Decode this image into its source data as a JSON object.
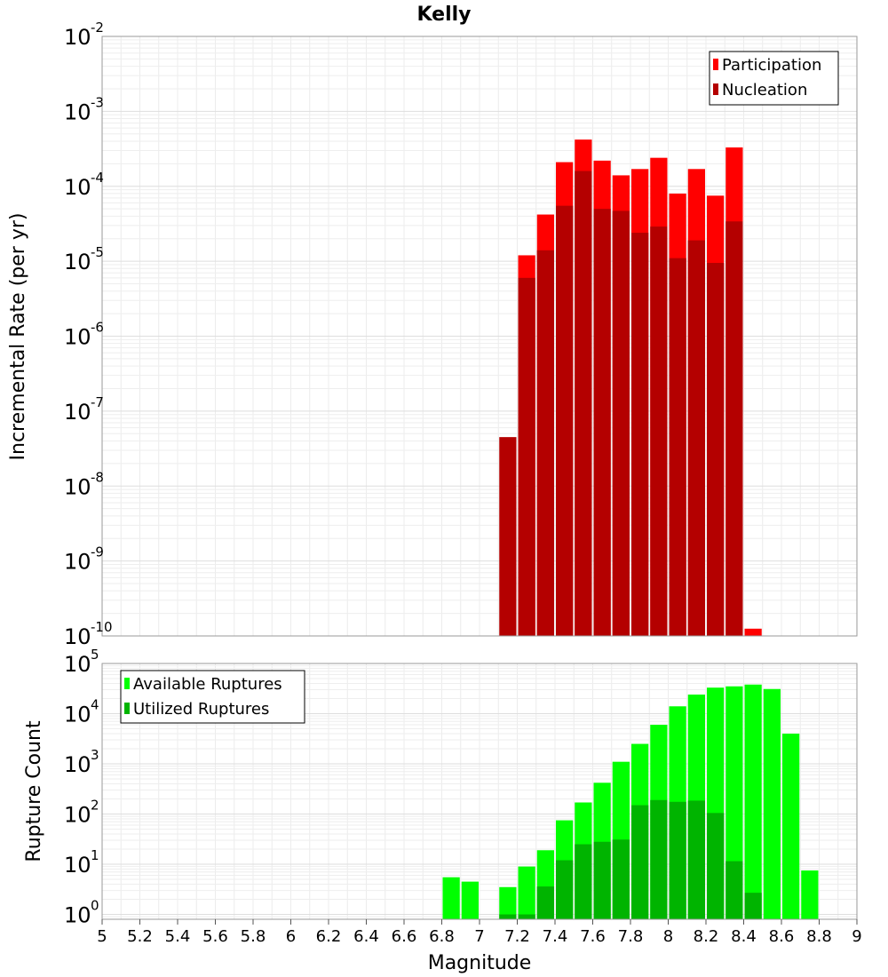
{
  "chart_data": [
    {
      "type": "bar",
      "panel": "top",
      "title": "Kelly",
      "xlabel": "",
      "ylabel": "Incremental Rate (per yr)",
      "yscale": "log",
      "ylim": [
        1e-10,
        0.01
      ],
      "xlim": [
        5,
        9
      ],
      "y_tick_exponents": [
        -10,
        -9,
        -8,
        -7,
        -6,
        -5,
        -4,
        -3,
        -2
      ],
      "legend_position": "top-right",
      "bin_width": 0.1,
      "x": [
        7.15,
        7.25,
        7.35,
        7.45,
        7.55,
        7.65,
        7.75,
        7.85,
        7.95,
        8.05,
        8.15,
        8.25,
        8.35,
        8.45
      ],
      "series": [
        {
          "name": "Participation",
          "color": "#ff0000",
          "values": [
            null,
            1.2e-05,
            4.2e-05,
            0.00021,
            0.00042,
            0.00022,
            0.00014,
            0.00017,
            0.00024,
            8e-05,
            0.00017,
            7.5e-05,
            0.00033,
            1.25e-10
          ]
        },
        {
          "name": "Nucleation",
          "color": "#b40000",
          "values": [
            4.5e-08,
            6e-06,
            1.4e-05,
            5.5e-05,
            0.00016,
            5e-05,
            4.7e-05,
            2.4e-05,
            2.9e-05,
            1.1e-05,
            1.9e-05,
            9.5e-06,
            3.4e-05,
            null
          ]
        }
      ]
    },
    {
      "type": "bar",
      "panel": "bottom",
      "title": "",
      "xlabel": "Magnitude",
      "ylabel": "Rupture Count",
      "yscale": "log",
      "ylim": [
        0.8,
        100000.0
      ],
      "xlim": [
        5,
        9
      ],
      "y_tick_exponents": [
        0,
        1,
        2,
        3,
        4,
        5
      ],
      "x_ticks": [
        "5",
        "5.2",
        "5.4",
        "5.6",
        "5.8",
        "6",
        "6.2",
        "6.4",
        "6.6",
        "6.8",
        "7",
        "7.2",
        "7.4",
        "7.6",
        "7.8",
        "8",
        "8.2",
        "8.4",
        "8.6",
        "8.8",
        "9"
      ],
      "legend_position": "top-left",
      "bin_width": 0.1,
      "x": [
        6.85,
        6.95,
        7.15,
        7.25,
        7.35,
        7.45,
        7.55,
        7.65,
        7.75,
        7.85,
        7.95,
        8.05,
        8.15,
        8.25,
        8.35,
        8.45,
        8.55,
        8.65,
        8.75
      ],
      "series": [
        {
          "name": "Available Ruptures",
          "color": "#00ff00",
          "values": [
            5.5,
            4.5,
            3.5,
            9,
            19,
            75,
            170,
            420,
            1100,
            2500,
            6000,
            14000,
            24000,
            33000,
            35000,
            38000,
            31000,
            4000,
            7.5
          ]
        },
        {
          "name": "Utilized Ruptures",
          "color": "#00b400",
          "values": [
            null,
            null,
            1,
            1,
            3.6,
            12,
            25,
            28,
            31,
            150,
            190,
            175,
            185,
            105,
            11.5,
            2.7,
            null,
            null,
            null
          ]
        }
      ]
    }
  ]
}
